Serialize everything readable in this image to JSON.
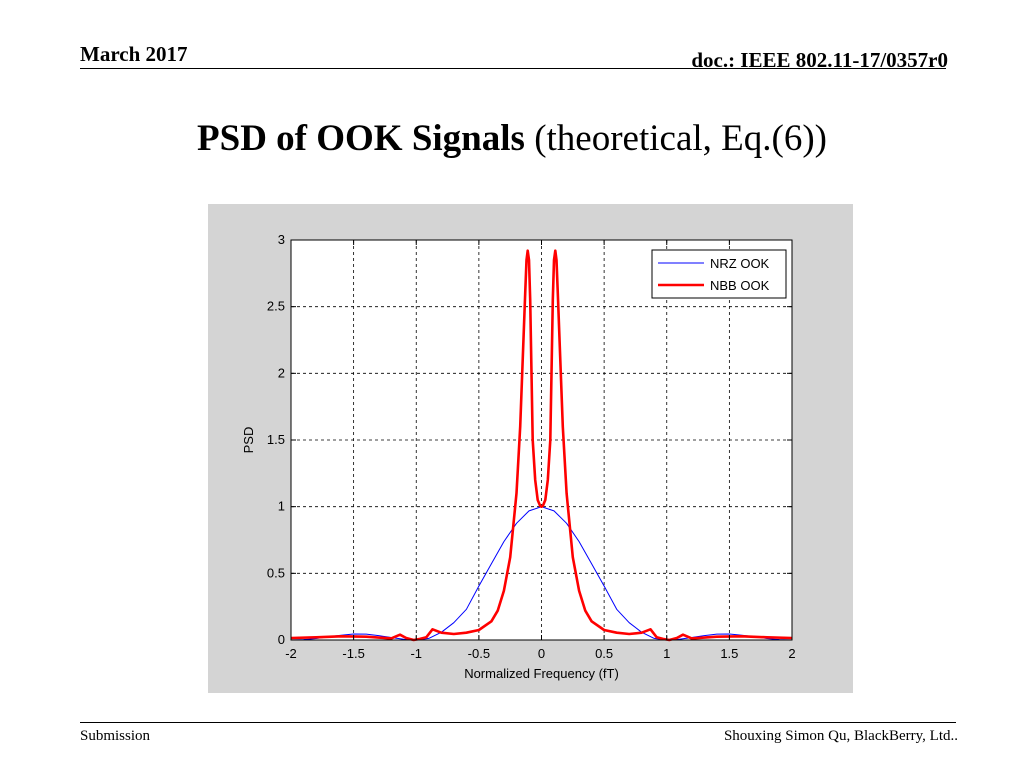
{
  "header": {
    "date": "March 2017",
    "doc": "doc.: IEEE 802.11-17/0357r0"
  },
  "slide": {
    "title_bold": "PSD of OOK Signals",
    "title_rest": " (theoretical, Eq.(6))"
  },
  "footer": {
    "left": "Submission",
    "right": "Shouxing Simon Qu, BlackBerry, Ltd.."
  },
  "chart_data": {
    "type": "line",
    "xlabel": "Normalized Frequency (fT)",
    "ylabel": "PSD",
    "xlim": [
      -2,
      2
    ],
    "ylim": [
      0,
      3
    ],
    "xticks": [
      -2,
      -1.5,
      -1,
      -0.5,
      0,
      0.5,
      1,
      1.5,
      2
    ],
    "yticks": [
      0,
      0.5,
      1,
      1.5,
      2,
      2.5,
      3
    ],
    "xtick_labels": [
      "-2",
      "-1.5",
      "-1",
      "-0.5",
      "0",
      "0.5",
      "1",
      "1.5",
      "2"
    ],
    "ytick_labels": [
      "0",
      "0.5",
      "1",
      "1.5",
      "2",
      "2.5",
      "3"
    ],
    "grid": true,
    "legend_position": "top-right",
    "series": [
      {
        "name": "NRZ OOK",
        "color": "#0000ff",
        "x": [
          -2,
          -1.9,
          -1.8,
          -1.7,
          -1.6,
          -1.5,
          -1.4,
          -1.3,
          -1.2,
          -1.1,
          -1.0,
          -0.9,
          -0.8,
          -0.7,
          -0.6,
          -0.5,
          -0.4,
          -0.3,
          -0.2,
          -0.1,
          0,
          0.1,
          0.2,
          0.3,
          0.4,
          0.5,
          0.6,
          0.7,
          0.8,
          0.9,
          1.0,
          1.1,
          1.2,
          1.3,
          1.4,
          1.5,
          1.6,
          1.7,
          1.8,
          1.9,
          2.0
        ],
        "y": [
          0.0,
          0.003,
          0.011,
          0.025,
          0.036,
          0.045,
          0.044,
          0.033,
          0.019,
          0.006,
          0.0,
          0.012,
          0.058,
          0.13,
          0.23,
          0.405,
          0.572,
          0.738,
          0.875,
          0.968,
          1.0,
          0.968,
          0.875,
          0.738,
          0.572,
          0.405,
          0.23,
          0.13,
          0.058,
          0.012,
          0.0,
          0.006,
          0.019,
          0.033,
          0.044,
          0.045,
          0.036,
          0.025,
          0.011,
          0.003,
          0.0
        ]
      },
      {
        "name": "NBB OOK",
        "color": "#ff0000",
        "x": [
          -2,
          -1.8,
          -1.6,
          -1.4,
          -1.2,
          -1.13,
          -1.08,
          -1.02,
          -0.97,
          -0.92,
          -0.87,
          -0.8,
          -0.7,
          -0.6,
          -0.5,
          -0.4,
          -0.35,
          -0.3,
          -0.25,
          -0.2,
          -0.17,
          -0.15,
          -0.13,
          -0.12,
          -0.11,
          -0.1,
          -0.09,
          -0.08,
          -0.07,
          -0.05,
          -0.03,
          -0.01,
          0,
          0.01,
          0.03,
          0.05,
          0.07,
          0.08,
          0.09,
          0.1,
          0.11,
          0.12,
          0.13,
          0.15,
          0.17,
          0.2,
          0.25,
          0.3,
          0.35,
          0.4,
          0.5,
          0.6,
          0.7,
          0.8,
          0.87,
          0.92,
          0.97,
          1.02,
          1.08,
          1.13,
          1.2,
          1.4,
          1.6,
          1.8,
          2
        ],
        "y": [
          0.015,
          0.02,
          0.028,
          0.025,
          0.012,
          0.04,
          0.015,
          0.0,
          0.008,
          0.02,
          0.08,
          0.055,
          0.045,
          0.055,
          0.075,
          0.14,
          0.22,
          0.37,
          0.62,
          1.1,
          1.6,
          2.1,
          2.6,
          2.85,
          2.92,
          2.85,
          2.55,
          2.0,
          1.5,
          1.2,
          1.05,
          1.005,
          1.0,
          1.005,
          1.05,
          1.2,
          1.5,
          2.0,
          2.55,
          2.85,
          2.92,
          2.85,
          2.6,
          2.1,
          1.6,
          1.1,
          0.62,
          0.37,
          0.22,
          0.14,
          0.075,
          0.055,
          0.045,
          0.055,
          0.08,
          0.02,
          0.008,
          0.0,
          0.015,
          0.04,
          0.012,
          0.025,
          0.028,
          0.02,
          0.015
        ]
      }
    ]
  }
}
